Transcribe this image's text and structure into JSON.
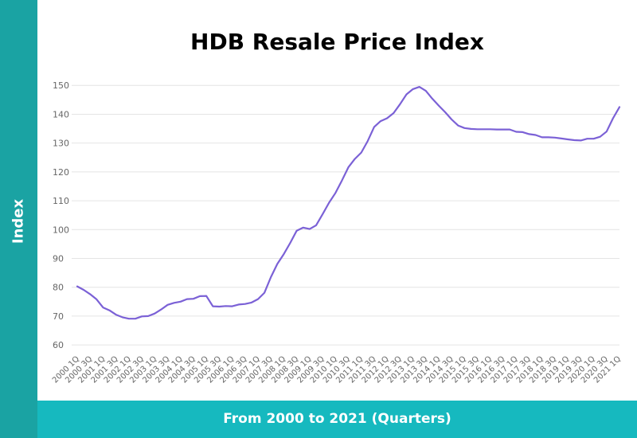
{
  "chart_data": {
    "type": "line",
    "title": "HDB Resale Price Index",
    "xlabel": "From 2000 to 2021 (Quarters)",
    "ylabel": "Index",
    "ylim": [
      57,
      152
    ],
    "yticks": [
      60,
      70,
      80,
      90,
      100,
      110,
      120,
      130,
      140,
      150
    ],
    "grid": true,
    "legend": "none",
    "x_tick_labels": [
      "2000 1Q",
      "2000 3Q",
      "2001 1Q",
      "2001 3Q",
      "2002 1Q",
      "2002 3Q",
      "2003 1Q",
      "2003 3Q",
      "2004 1Q",
      "2004 3Q",
      "2005 1Q",
      "2005 3Q",
      "2006 1Q",
      "2006 3Q",
      "2007 1Q",
      "2007 3Q",
      "2008 1Q",
      "2008 3Q",
      "2009 1Q",
      "2009 3Q",
      "2010 1Q",
      "2010 3Q",
      "2011 1Q",
      "2011 3Q",
      "2012 1Q",
      "2012 3Q",
      "2013 1Q",
      "2013 3Q",
      "2014 1Q",
      "2014 3Q",
      "2015 1Q",
      "2015 3Q",
      "2016 1Q",
      "2016 3Q",
      "2017 1Q",
      "2017 3Q",
      "2018 1Q",
      "2018 3Q",
      "2019 1Q",
      "2019 3Q",
      "2020 1Q",
      "2020 3Q",
      "2021 1Q"
    ],
    "series": [
      {
        "name": "HDB Resale Price Index",
        "color": "#7b61d6",
        "values": [
          80.3,
          79.1,
          77.6,
          75.8,
          73.0,
          72.0,
          70.5,
          69.6,
          69.1,
          69.1,
          69.9,
          70.0,
          70.9,
          72.3,
          73.9,
          74.6,
          75.0,
          75.9,
          76.0,
          76.9,
          77.0,
          73.4,
          73.3,
          73.5,
          73.4,
          74.0,
          74.2,
          74.7,
          75.9,
          78.1,
          83.5,
          88.1,
          91.5,
          95.4,
          99.6,
          100.7,
          100.2,
          101.5,
          105.3,
          109.3,
          112.7,
          117.0,
          121.6,
          124.5,
          126.7,
          130.7,
          135.6,
          137.6,
          138.6,
          140.4,
          143.5,
          146.9,
          148.7,
          149.5,
          148.1,
          145.4,
          143.0,
          140.7,
          138.2,
          136.1,
          135.2,
          134.9,
          134.8,
          134.8,
          134.8,
          134.7,
          134.7,
          134.7,
          133.9,
          133.8,
          133.1,
          132.8,
          132.0,
          132.0,
          131.9,
          131.6,
          131.3,
          131.0,
          130.9,
          131.5,
          131.5,
          132.2,
          134.0,
          138.6,
          142.5
        ]
      }
    ]
  }
}
